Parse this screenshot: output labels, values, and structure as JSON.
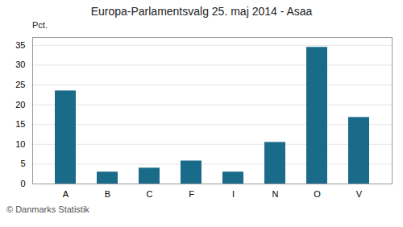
{
  "chart_data": {
    "type": "bar",
    "title": "Europa-Parlamentsvalg 25. maj 2014 - Asaa",
    "categories": [
      "A",
      "B",
      "C",
      "F",
      "I",
      "N",
      "O",
      "V"
    ],
    "values": [
      23.5,
      3.0,
      4.0,
      5.8,
      3.0,
      10.5,
      34.5,
      16.8
    ],
    "color": "#1a6b8a",
    "ylabel": "Pct.",
    "ylim": [
      0,
      37
    ],
    "yticks": [
      0,
      5,
      10,
      15,
      20,
      25,
      30,
      35
    ],
    "grid": true,
    "caption": "© Danmarks Statistik"
  }
}
